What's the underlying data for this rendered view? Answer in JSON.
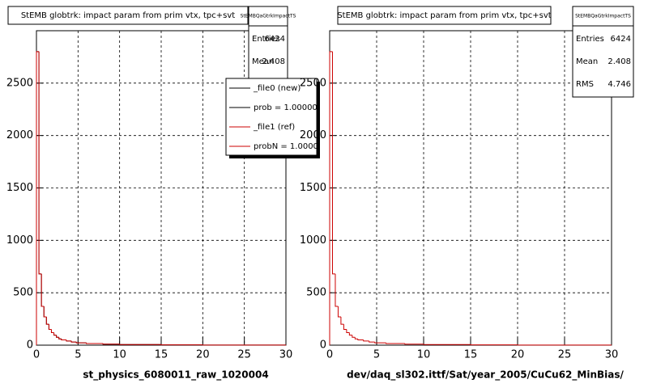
{
  "chart_data": [
    {
      "type": "histogram",
      "title": "StEMB globtrk: impact param from prim vtx, tpc+svt",
      "xlabel": "st_physics_6080011_raw_1020004",
      "bins": [
        0,
        0.3,
        0.6,
        0.9,
        1.2,
        1.5,
        1.8,
        2.1,
        2.4,
        2.7,
        3.0,
        3.6,
        4.2,
        4.8,
        6,
        8,
        10,
        15,
        20,
        30
      ],
      "series": [
        {
          "name": "_file0 (new)",
          "color": "#000000",
          "values": [
            2800,
            680,
            370,
            270,
            200,
            150,
            120,
            95,
            75,
            60,
            50,
            40,
            30,
            22,
            15,
            10,
            6,
            3,
            1
          ]
        },
        {
          "name": "_file1 (ref)",
          "color": "#cc0000",
          "values": [
            2800,
            680,
            370,
            270,
            200,
            150,
            120,
            95,
            75,
            60,
            50,
            40,
            30,
            22,
            15,
            10,
            6,
            3,
            1
          ]
        }
      ],
      "legend": true,
      "legend_notes": [
        "prob = 1.000000",
        "probN = 1.000000"
      ],
      "xlim": [
        0,
        30
      ],
      "xticks": [
        0,
        5,
        10,
        15,
        20,
        25,
        30
      ],
      "ylim": [
        0,
        3000
      ],
      "yticks": [
        0,
        500,
        1000,
        1500,
        2000,
        2500
      ],
      "grid": true,
      "stats": {
        "title": "StEMBQaGtrkImpactTS",
        "labels": [
          "Entries",
          "Mean"
        ],
        "values": [
          6424,
          2.408
        ]
      }
    },
    {
      "type": "histogram",
      "title": "StEMB globtrk: impact param from prim vtx, tpc+svt",
      "xlabel": "dev/daq_sl302.ittf/Sat/year_2005/CuCu62_MinBias/",
      "bins": [
        0,
        0.3,
        0.6,
        0.9,
        1.2,
        1.5,
        1.8,
        2.1,
        2.4,
        2.7,
        3.0,
        3.6,
        4.2,
        4.8,
        6,
        8,
        10,
        15,
        20,
        30
      ],
      "series": [
        {
          "name": "_file1 (ref)",
          "color": "#cc0000",
          "values": [
            2800,
            680,
            370,
            270,
            200,
            150,
            120,
            95,
            75,
            60,
            50,
            40,
            30,
            22,
            15,
            10,
            6,
            3,
            1
          ]
        }
      ],
      "legend": false,
      "xlim": [
        0,
        30
      ],
      "xticks": [
        0,
        5,
        10,
        15,
        20,
        25,
        30
      ],
      "ylim": [
        0,
        3000
      ],
      "yticks": [
        0,
        500,
        1000,
        1500,
        2000,
        2500
      ],
      "grid": true,
      "stats": {
        "title": "StEMBQaGtrkImpactTS",
        "labels": [
          "Entries",
          "Mean",
          "RMS"
        ],
        "values": [
          6424,
          2.408,
          4.746
        ]
      }
    }
  ]
}
